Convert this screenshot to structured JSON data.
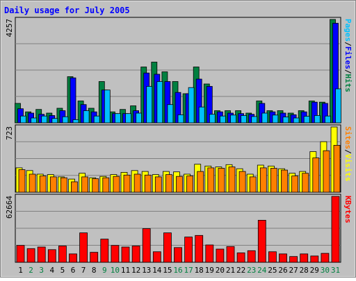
{
  "colors": {
    "background": "#c0c0c0",
    "pages": "#00c0ff",
    "files": "#0000ff",
    "hits": "#008040",
    "visits": "#ffff00",
    "sites": "#ff8000",
    "kbytes": "#ff0000",
    "title": "#0000ff",
    "weekend_day": "#008040",
    "weekday": "#000000"
  },
  "chart_data": {
    "type": "bar",
    "title": "Daily usage for July 2005",
    "categories": [
      "1",
      "2",
      "3",
      "4",
      "5",
      "6",
      "7",
      "8",
      "9",
      "10",
      "11",
      "12",
      "13",
      "14",
      "15",
      "16",
      "17",
      "18",
      "19",
      "20",
      "21",
      "22",
      "23",
      "24",
      "25",
      "26",
      "27",
      "28",
      "29",
      "30",
      "31"
    ],
    "weekend_days": [
      "2",
      "3",
      "9",
      "10",
      "16",
      "17",
      "23",
      "24",
      "30",
      "31"
    ],
    "panels": [
      {
        "id": "hits",
        "ylabel_parts": [
          "Pages",
          "/",
          "Files",
          "/",
          "Hits"
        ],
        "max_label": "4257",
        "ylim": [
          0,
          4257
        ],
        "series": [
          {
            "name": "Hits",
            "values": [
              800,
              450,
              550,
              400,
              600,
              1900,
              900,
              600,
              1700,
              450,
              550,
              700,
              2300,
              2500,
              2100,
              1700,
              1200,
              2300,
              1600,
              500,
              500,
              500,
              400,
              900,
              500,
              500,
              400,
              500,
              900,
              850,
              4257
            ]
          },
          {
            "name": "Files",
            "values": [
              580,
              400,
              350,
              300,
              500,
              1850,
              750,
              450,
              1350,
              380,
              380,
              500,
              2050,
              2000,
              1700,
              1250,
              1200,
              1800,
              1500,
              450,
              400,
              380,
              350,
              800,
              450,
              400,
              330,
              450,
              850,
              800,
              4100
            ]
          },
          {
            "name": "Pages",
            "values": [
              280,
              200,
              280,
              180,
              250,
              130,
              500,
              280,
              1350,
              380,
              380,
              400,
              1500,
              1700,
              750,
              330,
              1450,
              650,
              350,
              280,
              320,
              300,
              260,
              400,
              320,
              240,
              200,
              270,
              300,
              280,
              1400
            ]
          }
        ]
      },
      {
        "id": "visits",
        "ylabel_parts": [
          "Sites",
          "/",
          "Visits"
        ],
        "max_label": "723",
        "ylim": [
          0,
          723
        ],
        "series": [
          {
            "name": "Visits",
            "values": [
              270,
              240,
              200,
              195,
              170,
              145,
              210,
              160,
              175,
              195,
              220,
              240,
              230,
              195,
              230,
              225,
              200,
              310,
              290,
              280,
              305,
              260,
              200,
              300,
              290,
              260,
              210,
              230,
              450,
              560,
              723
            ]
          },
          {
            "name": "Sites",
            "values": [
              250,
              200,
              180,
              170,
              160,
              115,
              170,
              150,
              160,
              175,
              190,
              200,
              190,
              170,
              195,
              175,
              180,
              230,
              270,
              265,
              280,
              230,
              170,
              270,
              265,
              245,
              180,
              210,
              380,
              460,
              520
            ]
          }
        ]
      },
      {
        "id": "kbytes",
        "ylabel_parts": [
          "KBytes"
        ],
        "max_label": "62664",
        "ylim": [
          0,
          62664
        ],
        "series": [
          {
            "name": "KBytes",
            "values": [
              16000,
              13000,
              14500,
              12000,
              15500,
              8000,
              28000,
              9500,
              22000,
              16000,
              14500,
              15500,
              32000,
              10000,
              28000,
              14000,
              24000,
              25500,
              16500,
              12500,
              15000,
              9000,
              11000,
              40000,
              10000,
              8000,
              5500,
              8000,
              6000,
              8500,
              62664
            ]
          }
        ]
      }
    ]
  }
}
